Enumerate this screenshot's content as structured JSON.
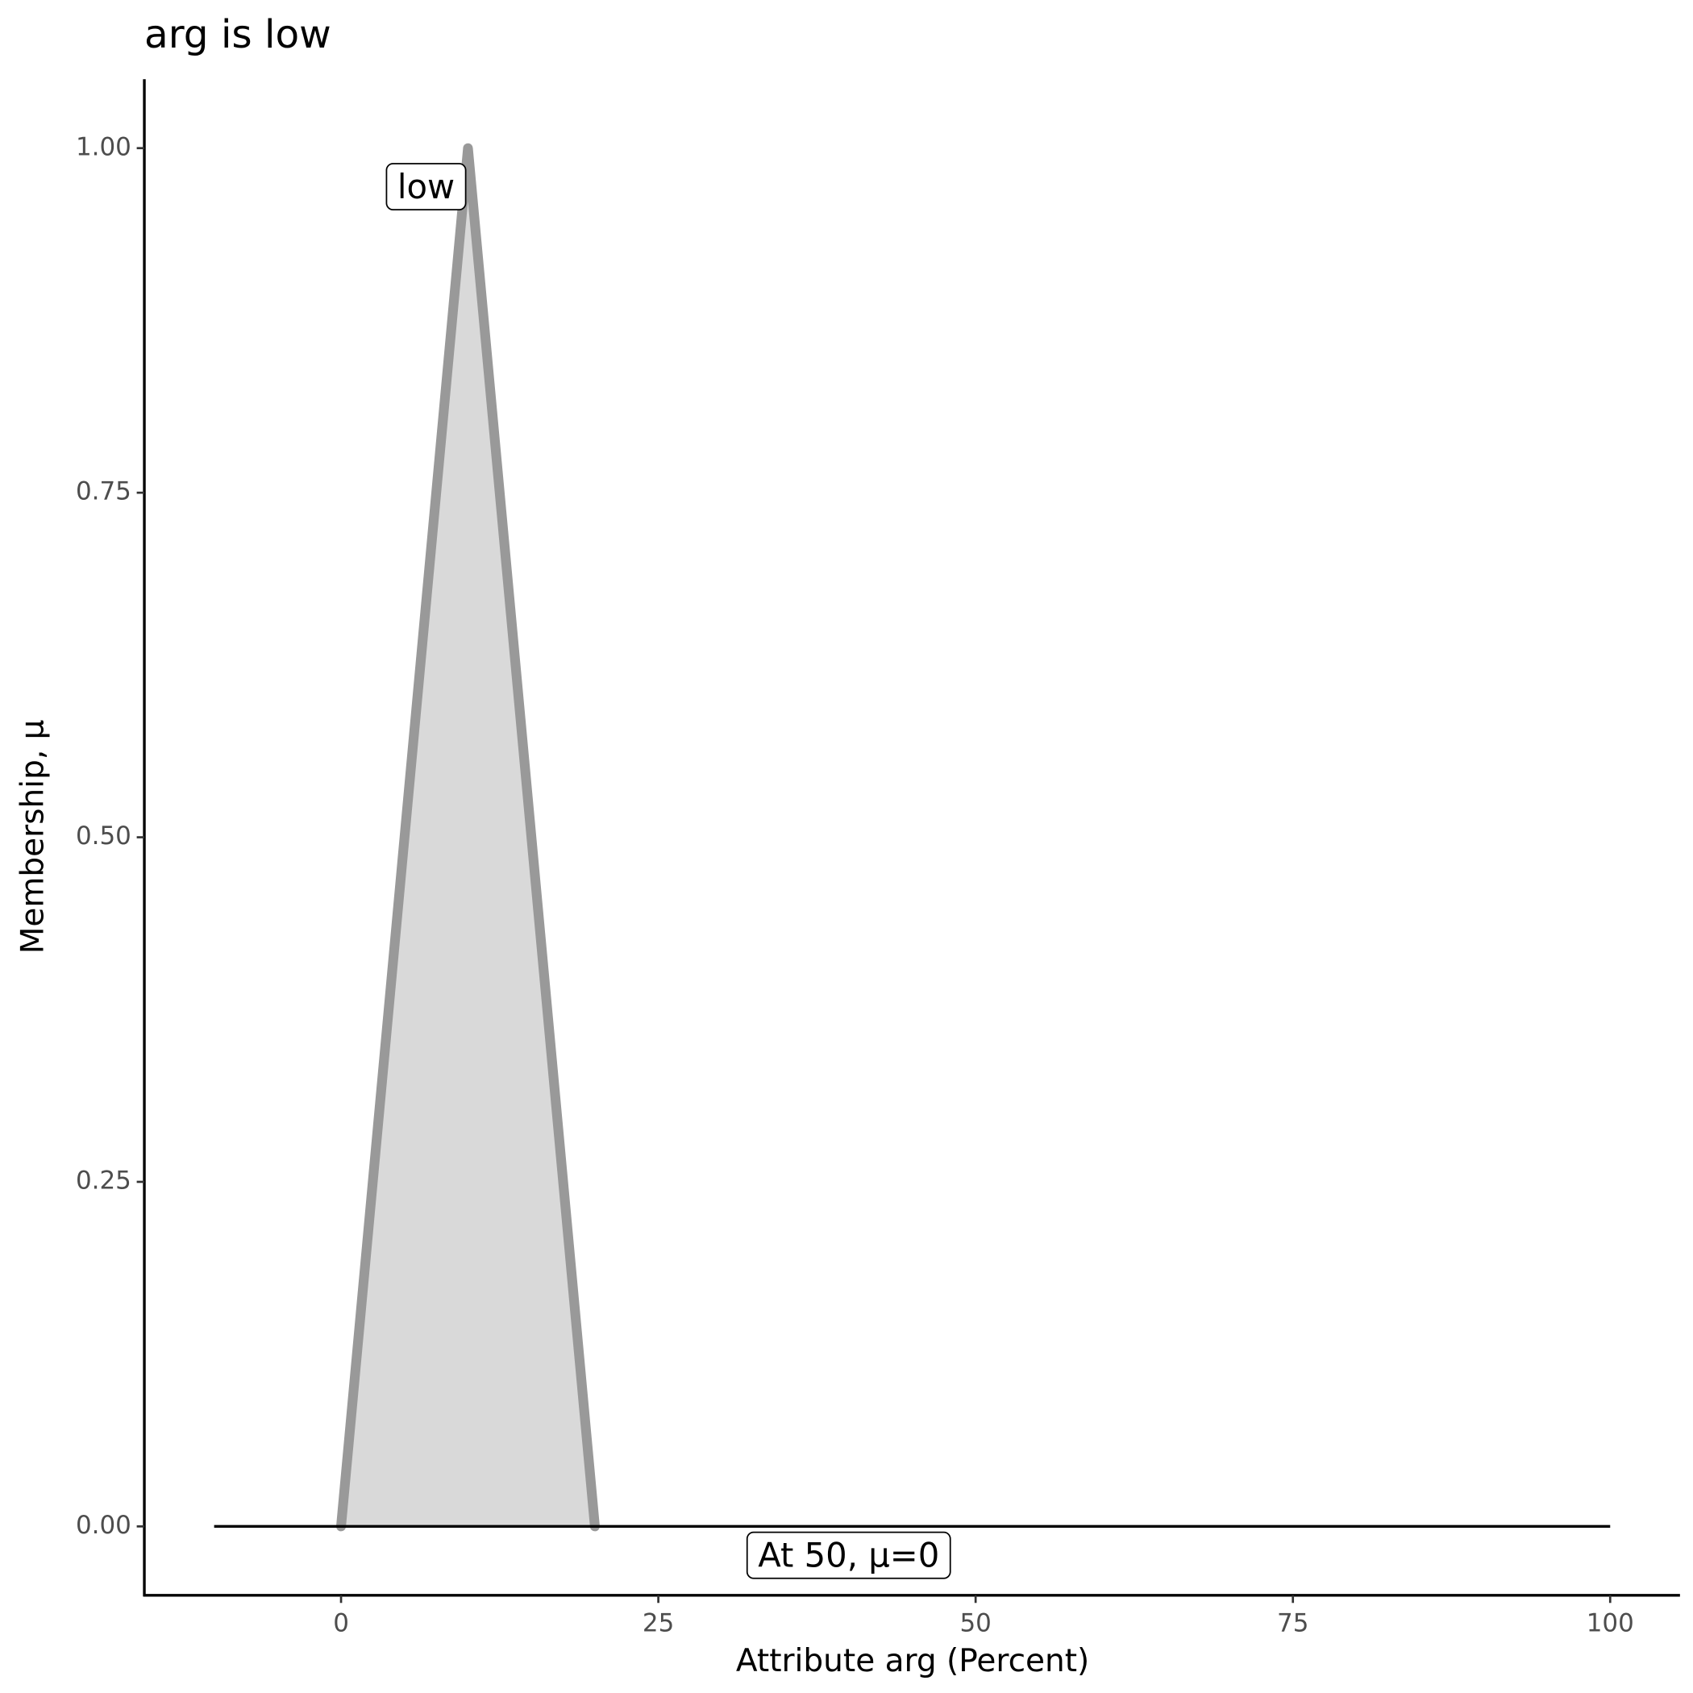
{
  "chart_data": {
    "type": "line",
    "title": "arg is low",
    "xlabel": "Attribute arg (Percent)",
    "ylabel": "Membership, μ",
    "xlim": [
      -15.5,
      105.5
    ],
    "ylim": [
      -0.05,
      1.05
    ],
    "xticks": [
      0,
      25,
      50,
      75,
      100
    ],
    "yticks": [
      {
        "value": 0,
        "label": "0.00"
      },
      {
        "value": 0.25,
        "label": "0.25"
      },
      {
        "value": 0.5,
        "label": "0.50"
      },
      {
        "value": 0.75,
        "label": "0.75"
      },
      {
        "value": 1,
        "label": "1.00"
      }
    ],
    "grid": false,
    "series": [
      {
        "x": [
          0,
          10,
          20
        ],
        "values": [
          0,
          1,
          0
        ],
        "color": "#999999",
        "fill": "#d9d9d9"
      },
      {
        "x": [
          -10,
          100
        ],
        "values": [
          0,
          0
        ],
        "color": "#000000"
      }
    ],
    "annotations": [
      {
        "text": "low",
        "x": 6.7,
        "y": 0.97
      },
      {
        "text": "At 50, μ=0",
        "x": 40,
        "y": -0.023
      }
    ]
  }
}
